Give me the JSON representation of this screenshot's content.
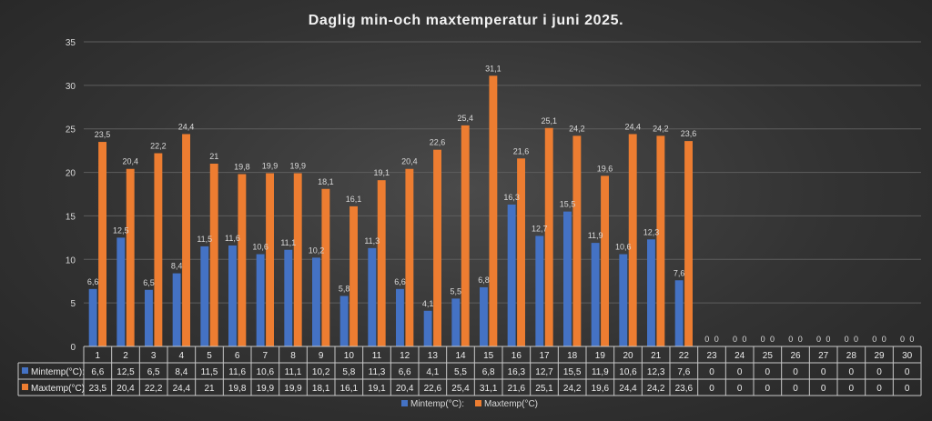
{
  "chart_data": {
    "type": "bar",
    "title": "Daglig min-och maxtemperatur i juni 2025.",
    "categories": [
      "1",
      "2",
      "3",
      "4",
      "5",
      "6",
      "7",
      "8",
      "9",
      "10",
      "11",
      "12",
      "13",
      "14",
      "15",
      "16",
      "17",
      "18",
      "19",
      "20",
      "21",
      "22",
      "23",
      "24",
      "25",
      "26",
      "27",
      "28",
      "29",
      "30"
    ],
    "series": [
      {
        "name": "Mintemp(°C):",
        "color": "#4472c4",
        "values": [
          6.6,
          12.5,
          6.5,
          8.4,
          11.5,
          11.6,
          10.6,
          11.1,
          10.2,
          5.8,
          11.3,
          6.6,
          4.1,
          5.5,
          6.8,
          16.3,
          12.7,
          15.5,
          11.9,
          10.6,
          12.3,
          7.6,
          0,
          0,
          0,
          0,
          0,
          0,
          0,
          0
        ],
        "labels": [
          "6,6",
          "12,5",
          "6,5",
          "8,4",
          "11,5",
          "11,6",
          "10,6",
          "11,1",
          "10,2",
          "5,8",
          "11,3",
          "6,6",
          "4,1",
          "5,5",
          "6,8",
          "16,3",
          "12,7",
          "15,5",
          "11,9",
          "10,6",
          "12,3",
          "7,6",
          "0",
          "0",
          "0",
          "0",
          "0",
          "0",
          "0",
          "0"
        ]
      },
      {
        "name": "Maxtemp(°C)",
        "color": "#ed7d31",
        "values": [
          23.5,
          20.4,
          22.2,
          24.4,
          21,
          19.8,
          19.9,
          19.9,
          18.1,
          16.1,
          19.1,
          20.4,
          22.6,
          25.4,
          31.1,
          21.6,
          25.1,
          24.2,
          19.6,
          24.4,
          24.2,
          23.6,
          0,
          0,
          0,
          0,
          0,
          0,
          0,
          0
        ],
        "labels": [
          "23,5",
          "20,4",
          "22,2",
          "24,4",
          "21",
          "19,8",
          "19,9",
          "19,9",
          "18,1",
          "16,1",
          "19,1",
          "20,4",
          "22,6",
          "25,4",
          "31,1",
          "21,6",
          "25,1",
          "24,2",
          "19,6",
          "24,4",
          "24,2",
          "23,6",
          "0",
          "0",
          "0",
          "0",
          "0",
          "0",
          "0",
          "0"
        ]
      }
    ],
    "ylim": [
      0,
      35
    ],
    "yticks": [
      "0",
      "5",
      "10",
      "15",
      "20",
      "25",
      "30",
      "35"
    ],
    "grid": true,
    "legend": "bottom",
    "data_table": true
  }
}
